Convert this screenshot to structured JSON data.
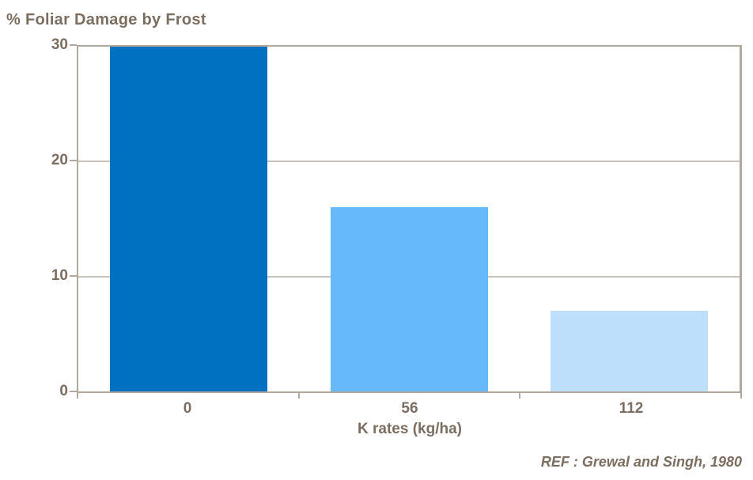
{
  "title": "% Foliar Damage by Frost",
  "colors": {
    "text": "#7B6E60",
    "axis": "#B2A89C",
    "gridline": "#CCC4BA",
    "bar_colors": [
      "#0071C1",
      "#66B9FA",
      "#BDDFFB"
    ]
  },
  "chart_data": {
    "type": "bar",
    "categories": [
      "0",
      "56",
      "112"
    ],
    "values": [
      30,
      16,
      7
    ],
    "title": "% Foliar Damage by Frost",
    "xlabel": "K rates (kg/ha)",
    "ylabel": "",
    "ylim": [
      0,
      30
    ],
    "yticks": [
      0,
      10,
      20,
      30
    ],
    "grid": "horizontal",
    "legend": "none",
    "annotation": "REF : Grewal and Singh, 1980"
  }
}
